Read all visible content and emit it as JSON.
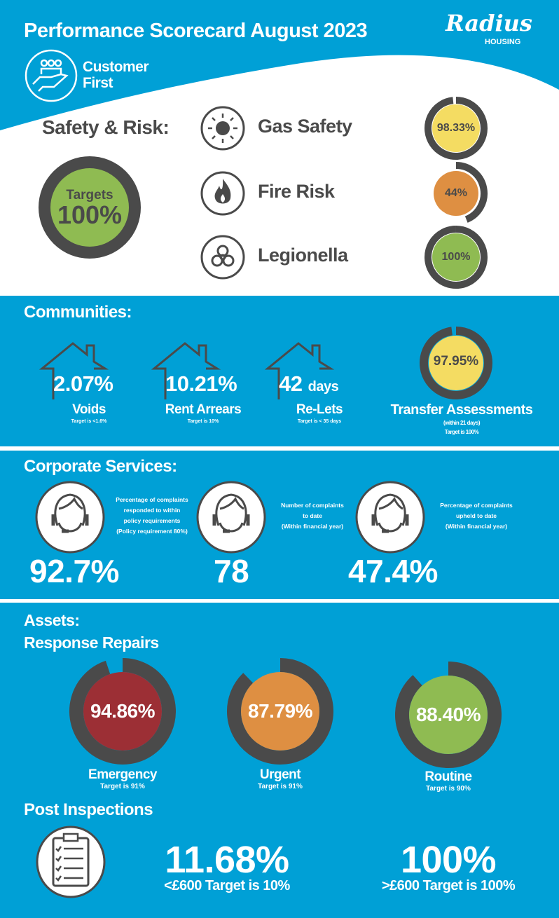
{
  "header": {
    "title": "Performance Scorecard August 2023",
    "logo_text": "Radius",
    "logo_sub": "HOUSING",
    "badge_line1": "Customer",
    "badge_line2": "First"
  },
  "safety": {
    "title": "Safety & Risk:",
    "overall_label": "Targets",
    "overall_value": "100%",
    "items": [
      {
        "label": "Gas Safety",
        "value": "98.33%",
        "fraction": 0.9833,
        "color": "#f4dc62"
      },
      {
        "label": "Fire Risk",
        "value": "44%",
        "fraction": 0.44,
        "color": "#de8f42"
      },
      {
        "label": "Legionella",
        "value": "100%",
        "fraction": 1.0,
        "color": "#8fbb52"
      }
    ]
  },
  "communities": {
    "title": "Communities:",
    "items": [
      {
        "value": "2.07%",
        "unit": "",
        "label": "Voids",
        "target": "Target is <1.6%"
      },
      {
        "value": "10.21%",
        "unit": "",
        "label": "Rent Arrears",
        "target": "Target is 10%"
      },
      {
        "value": "42",
        "unit": "days",
        "label": "Re-Lets",
        "target": "Target is < 35 days"
      }
    ],
    "transfer": {
      "value": "97.95%",
      "fraction": 0.9795,
      "color": "#f4dc62",
      "label": "Transfer Assessments",
      "sub": "(within 21 days)",
      "target": "Target is 100%"
    }
  },
  "corporate": {
    "title": "Corporate Services:",
    "items": [
      {
        "desc": [
          "Percentage of complaints",
          "responded to within",
          "policy requirements",
          "(Policy requirement 80%)"
        ],
        "value": "92.7%"
      },
      {
        "desc": [
          "Number of complaints",
          "to date",
          "(Within financial year)"
        ],
        "value": "78"
      },
      {
        "desc": [
          "Percentage of complaints",
          "upheld to date",
          "(Within financial year)"
        ],
        "value": "47.4%"
      }
    ]
  },
  "assets": {
    "title": "Assets:",
    "subtitle": "Response Repairs",
    "repairs": [
      {
        "value": "94.86%",
        "fraction": 0.9486,
        "color": "#9c2f35",
        "label": "Emergency",
        "target": "Target is 91%"
      },
      {
        "value": "87.79%",
        "fraction": 0.8779,
        "color": "#de8f42",
        "label": "Urgent",
        "target": "Target is 91%"
      },
      {
        "value": "88.40%",
        "fraction": 0.884,
        "color": "#8fbb52",
        "label": "Routine",
        "target": "Target is 90%"
      }
    ],
    "post_title": "Post Inspections",
    "post": [
      {
        "value": "11.68%",
        "label": "<£600 Target is 10%"
      },
      {
        "value": "100%",
        "label": ">£600 Target is 100%"
      }
    ]
  },
  "colors": {
    "blue": "#00a0d6",
    "dark": "#4a4a4a",
    "green": "#8fbb52"
  }
}
